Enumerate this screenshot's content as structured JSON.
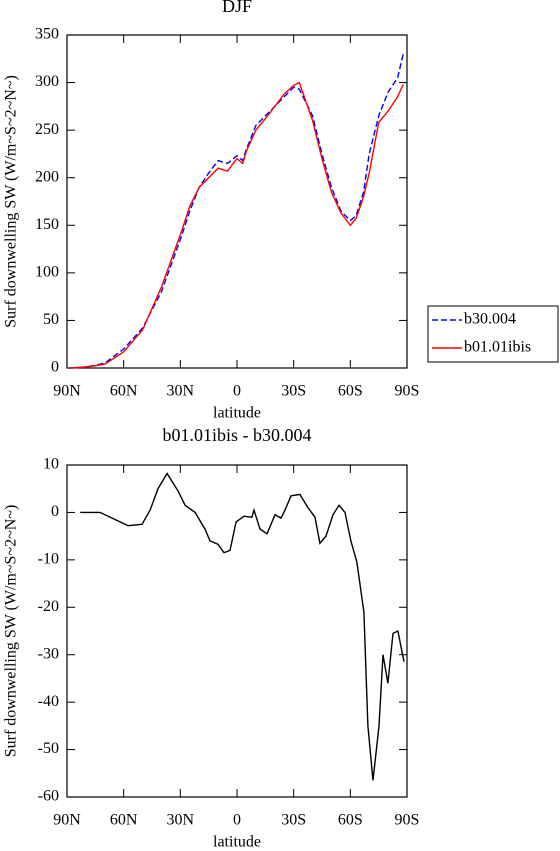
{
  "chart_data": [
    {
      "type": "line",
      "title": "DJF",
      "xlabel": "latitude",
      "ylabel": "Surf downwelling SW (W/m~S~2~N~)",
      "x": [
        88,
        80,
        70,
        60,
        50,
        40,
        30,
        25,
        20,
        15,
        10,
        5,
        2,
        0,
        -3,
        -5,
        -10,
        -15,
        -20,
        -25,
        -30,
        -33,
        -40,
        -45,
        -50,
        -55,
        -60,
        -63,
        -67,
        -70,
        -75,
        -80,
        -85,
        -88
      ],
      "series": [
        {
          "name": "b30.004",
          "color": "#0000ff",
          "dash": true,
          "values": [
            0,
            1,
            5,
            20,
            42,
            80,
            135,
            165,
            190,
            205,
            218,
            215,
            220,
            223,
            218,
            230,
            255,
            265,
            275,
            285,
            295,
            293,
            265,
            225,
            190,
            165,
            155,
            160,
            185,
            225,
            265,
            290,
            305,
            330
          ]
        },
        {
          "name": "b01.01ibis",
          "color": "#ff0000",
          "dash": false,
          "values": [
            0,
            1,
            4,
            17,
            40,
            85,
            140,
            170,
            190,
            200,
            210,
            207,
            215,
            220,
            215,
            228,
            250,
            262,
            275,
            288,
            297,
            300,
            260,
            220,
            185,
            163,
            150,
            157,
            180,
            205,
            258,
            270,
            285,
            298
          ]
        }
      ],
      "xlim": [
        90,
        -90
      ],
      "xticks": [
        {
          "value": 90,
          "label": "90N"
        },
        {
          "value": 60,
          "label": "60N"
        },
        {
          "value": 30,
          "label": "30N"
        },
        0,
        {
          "value": -30,
          "label": "30S"
        },
        {
          "value": -60,
          "label": "60S"
        },
        {
          "value": -90,
          "label": "90S"
        }
      ],
      "ylim": [
        0,
        350
      ],
      "yticks": [
        0,
        50,
        100,
        150,
        200,
        250,
        300,
        350
      ],
      "legend": "right"
    },
    {
      "type": "line",
      "title": "b01.01ibis - b30.004",
      "xlabel": "latitude",
      "ylabel": "Surf downwelling SW (W/m~S~2~N~)",
      "x": [
        83,
        72.5,
        64.6,
        57.7,
        50.3,
        46,
        41.8,
        37,
        31.2,
        27.5,
        22.2,
        17,
        14.3,
        10.1,
        6.9,
        3.7,
        0.5,
        -3.7,
        -7.9,
        -9,
        -12.2,
        -15.9,
        -20.1,
        -23.3,
        -25.4,
        -28.6,
        -33.3,
        -37.6,
        -41.3,
        -43.9,
        -47.1,
        -50.8,
        -54,
        -57.2,
        -60.3,
        -63.5,
        -67.2,
        -69.3,
        -72,
        -75.2,
        -77.3,
        -79.9,
        -82.6,
        -85.2,
        -88.4
      ],
      "series": [
        {
          "color": "#000000",
          "dash": false,
          "values": [
            0,
            0,
            -1.5,
            -2.8,
            -2.5,
            0.5,
            5,
            8.2,
            4.5,
            1.5,
            0,
            -3.5,
            -6,
            -6.7,
            -8.5,
            -8,
            -2,
            -0.8,
            -1,
            0.5,
            -3.5,
            -4.5,
            -0.5,
            -1.2,
            0.5,
            3.5,
            3.8,
            1,
            -1,
            -6.5,
            -5,
            -0.5,
            1.5,
            0,
            -6,
            -10.5,
            -21,
            -45,
            -56.5,
            -45,
            -30,
            -36,
            -25.5,
            -25,
            -31.5
          ]
        }
      ],
      "xlim": [
        90,
        -90
      ],
      "xticks": [
        {
          "value": 90,
          "label": "90N"
        },
        {
          "value": 60,
          "label": "60N"
        },
        {
          "value": 30,
          "label": "30N"
        },
        0,
        {
          "value": -30,
          "label": "30S"
        },
        {
          "value": -60,
          "label": "60S"
        },
        {
          "value": -90,
          "label": "90S"
        }
      ],
      "ylim": [
        -60,
        10
      ],
      "yticks": [
        10,
        0,
        -10,
        -20,
        -30,
        -40,
        -50,
        -60
      ]
    }
  ]
}
